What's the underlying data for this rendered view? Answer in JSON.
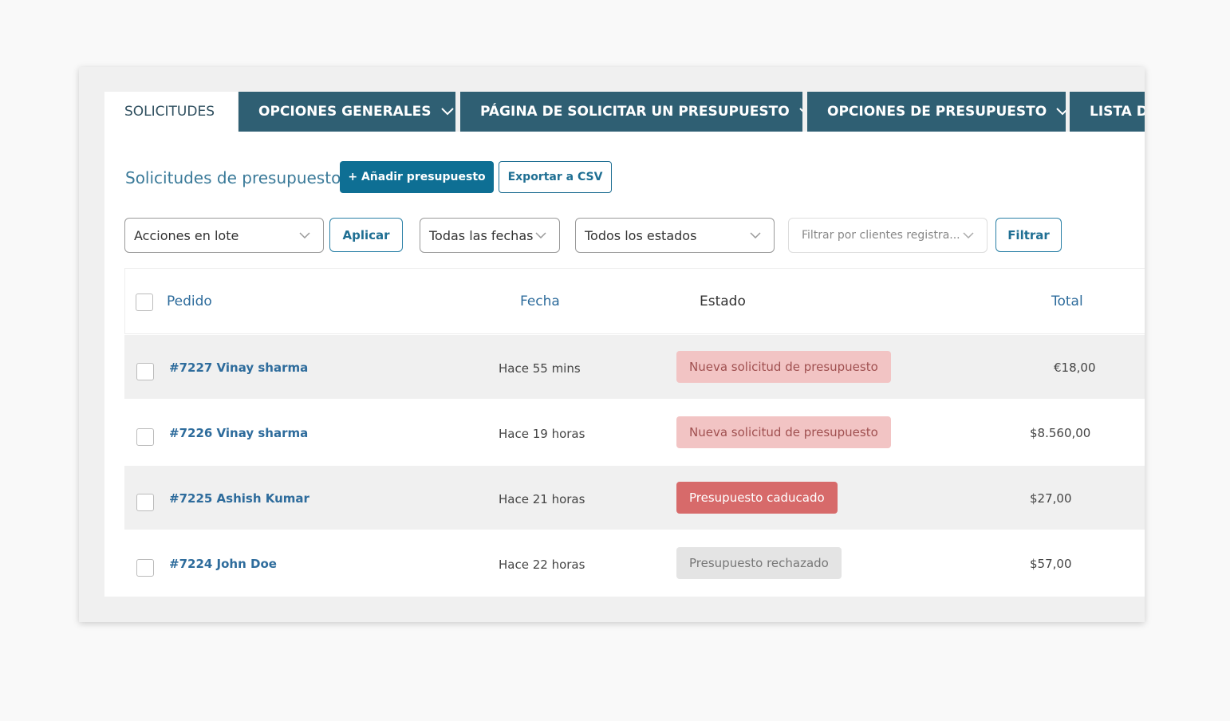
{
  "tabs": [
    {
      "label": "SOLICITUDES"
    },
    {
      "label": "OPCIONES GENERALES"
    },
    {
      "label": "PÁGINA DE SOLICITAR UN PRESUPUESTO"
    },
    {
      "label": "OPCIONES DE PRESUPUESTO"
    },
    {
      "label": "LISTA DE"
    }
  ],
  "heading": "Solicitudes de presupuesto",
  "buttons": {
    "add": "+ Añadir presupuesto",
    "export": "Exportar a CSV"
  },
  "filters": {
    "bulk": "Acciones en lote",
    "apply": "Aplicar",
    "dates": "Todas las fechas",
    "states": "Todos los estados",
    "customers": "Filtrar por clientes registra...",
    "filter": "Filtrar"
  },
  "table": {
    "headers": [
      "Pedido",
      "Fecha",
      "Estado",
      "Total"
    ],
    "rows": [
      [
        "#7227 Vinay sharma",
        "Hace 55 mins",
        "Nueva solicitud de presupuesto",
        "€18,00"
      ],
      [
        "#7226 Vinay sharma",
        "Hace 19 horas",
        "Nueva solicitud de presupuesto",
        "$8.560,00"
      ],
      [
        "#7225 Ashish Kumar",
        "Hace 21 horas",
        "Presupuesto caducado",
        "$27,00"
      ],
      [
        "#7224 John Doe",
        "Hace 22 horas",
        "Presupuesto rechazado",
        "$57,00"
      ]
    ]
  }
}
